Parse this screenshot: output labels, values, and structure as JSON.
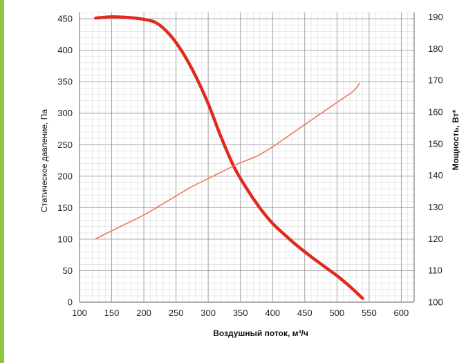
{
  "accent_color": "#8dc63f",
  "chart_data": {
    "type": "line",
    "title": "",
    "xlabel": "Воздушный поток, м³/ч",
    "ylabel": "Статическое давление, Па",
    "y2label": "Мощность, Вт*",
    "xlim": [
      100,
      620
    ],
    "ylim": [
      0,
      460
    ],
    "y2lim": [
      100,
      191.4
    ],
    "x_ticks": [
      100,
      150,
      200,
      250,
      300,
      350,
      400,
      450,
      500,
      550,
      600
    ],
    "y_ticks": [
      0,
      50,
      100,
      150,
      200,
      250,
      300,
      350,
      400,
      450
    ],
    "y2_ticks": [
      100,
      110,
      120,
      130,
      140,
      150,
      160,
      170,
      180,
      190
    ],
    "grid": true,
    "series": [
      {
        "axis": "left",
        "color": "#e02a1c",
        "values": [
          [
            125,
            451
          ],
          [
            150,
            453
          ],
          [
            175,
            452
          ],
          [
            200,
            449
          ],
          [
            220,
            443
          ],
          [
            240,
            425
          ],
          [
            260,
            397
          ],
          [
            280,
            360
          ],
          [
            300,
            315
          ],
          [
            320,
            262
          ],
          [
            340,
            215
          ],
          [
            360,
            180
          ],
          [
            380,
            150
          ],
          [
            400,
            125
          ],
          [
            420,
            106
          ],
          [
            440,
            88
          ],
          [
            460,
            72
          ],
          [
            480,
            57
          ],
          [
            500,
            42
          ],
          [
            520,
            25
          ],
          [
            540,
            6
          ]
        ]
      },
      {
        "axis": "right",
        "color": "#f0785a",
        "values": [
          [
            125,
            120
          ],
          [
            150,
            122.5
          ],
          [
            175,
            125
          ],
          [
            200,
            127.5
          ],
          [
            225,
            130.5
          ],
          [
            250,
            133.5
          ],
          [
            275,
            136.5
          ],
          [
            300,
            139
          ],
          [
            325,
            141.5
          ],
          [
            350,
            144
          ],
          [
            375,
            146
          ],
          [
            400,
            149
          ],
          [
            425,
            152.5
          ],
          [
            450,
            156
          ],
          [
            475,
            159.5
          ],
          [
            500,
            163
          ],
          [
            525,
            166.5
          ],
          [
            535,
            169
          ]
        ]
      }
    ]
  }
}
